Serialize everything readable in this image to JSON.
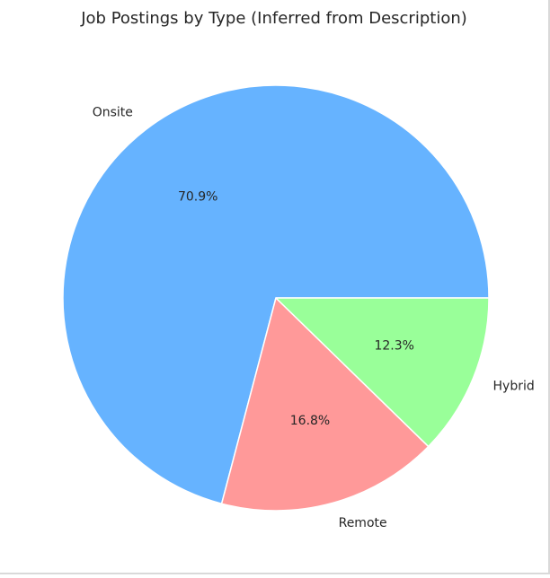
{
  "chart_data": {
    "type": "pie",
    "title": "Job Postings by Type (Inferred from Description)",
    "start_angle_deg": 0,
    "direction": "counterclockwise",
    "slices": [
      {
        "label": "Onsite",
        "value": 70.9,
        "pct_label": "70.9%",
        "color": "#66b3ff"
      },
      {
        "label": "Remote",
        "value": 16.8,
        "pct_label": "16.8%",
        "color": "#ff9999"
      },
      {
        "label": "Hybrid",
        "value": 12.3,
        "pct_label": "12.3%",
        "color": "#99ff99"
      }
    ],
    "wedge_edge_color": "#ffffff"
  }
}
